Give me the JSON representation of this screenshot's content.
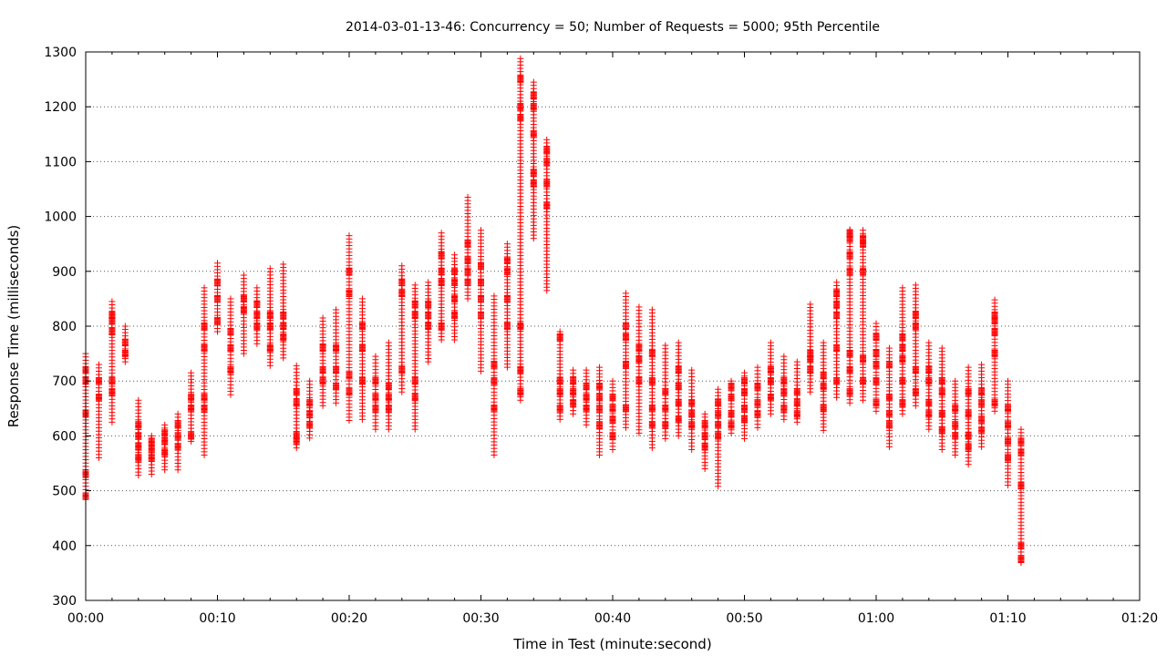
{
  "chart_data": {
    "type": "scatter",
    "title": "2014-03-01-13-46: Concurrency = 50; Number of Requests = 5000; 95th Percentile",
    "xlabel": "Time in Test (minute:second)",
    "ylabel": "Response Time (milliseconds)",
    "xlim": [
      0,
      80
    ],
    "ylim": [
      300,
      1300
    ],
    "x_unit": "seconds",
    "x_ticks": [
      {
        "value": 0,
        "label": "00:00"
      },
      {
        "value": 10,
        "label": "00:10"
      },
      {
        "value": 20,
        "label": "00:20"
      },
      {
        "value": 30,
        "label": "00:30"
      },
      {
        "value": 40,
        "label": "00:40"
      },
      {
        "value": 50,
        "label": "00:50"
      },
      {
        "value": 60,
        "label": "01:00"
      },
      {
        "value": 70,
        "label": "01:10"
      },
      {
        "value": 80,
        "label": "01:20"
      }
    ],
    "y_ticks": [
      300,
      400,
      500,
      600,
      700,
      800,
      900,
      1000,
      1100,
      1200,
      1300
    ],
    "grid": true,
    "marker": "+",
    "color": "#ff0000",
    "point_groups": [
      {
        "t": 0,
        "min": 490,
        "max": 750,
        "dense": [
          490,
          530,
          640,
          700,
          720
        ]
      },
      {
        "t": 1,
        "min": 560,
        "max": 730,
        "dense": [
          670,
          700
        ]
      },
      {
        "t": 2,
        "min": 625,
        "max": 845,
        "dense": [
          680,
          700,
          790,
          810,
          820
        ]
      },
      {
        "t": 3,
        "min": 735,
        "max": 800,
        "dense": [
          750,
          770
        ]
      },
      {
        "t": 4,
        "min": 528,
        "max": 665,
        "dense": [
          560,
          580,
          600,
          620
        ]
      },
      {
        "t": 5,
        "min": 530,
        "max": 600,
        "dense": [
          560,
          575,
          590
        ]
      },
      {
        "t": 6,
        "min": 538,
        "max": 620,
        "dense": [
          570,
          590,
          605
        ]
      },
      {
        "t": 7,
        "min": 538,
        "max": 640,
        "dense": [
          580,
          600,
          620
        ]
      },
      {
        "t": 8,
        "min": 590,
        "max": 715,
        "dense": [
          600,
          650,
          670
        ]
      },
      {
        "t": 9,
        "min": 565,
        "max": 870,
        "dense": [
          650,
          670,
          760,
          800
        ]
      },
      {
        "t": 10,
        "min": 790,
        "max": 915,
        "dense": [
          810,
          850,
          880
        ]
      },
      {
        "t": 11,
        "min": 675,
        "max": 850,
        "dense": [
          720,
          760,
          790
        ]
      },
      {
        "t": 12,
        "min": 750,
        "max": 893,
        "dense": [
          830,
          850
        ]
      },
      {
        "t": 13,
        "min": 768,
        "max": 870,
        "dense": [
          800,
          820,
          840
        ]
      },
      {
        "t": 14,
        "min": 728,
        "max": 905,
        "dense": [
          760,
          800,
          820
        ]
      },
      {
        "t": 15,
        "min": 742,
        "max": 913,
        "dense": [
          780,
          800,
          820
        ]
      },
      {
        "t": 16,
        "min": 578,
        "max": 728,
        "dense": [
          590,
          600,
          660,
          680
        ]
      },
      {
        "t": 17,
        "min": 596,
        "max": 700,
        "dense": [
          620,
          640,
          660
        ]
      },
      {
        "t": 18,
        "min": 655,
        "max": 815,
        "dense": [
          700,
          720,
          760
        ]
      },
      {
        "t": 19,
        "min": 660,
        "max": 830,
        "dense": [
          690,
          720,
          760
        ]
      },
      {
        "t": 20,
        "min": 628,
        "max": 965,
        "dense": [
          680,
          710,
          860,
          900
        ]
      },
      {
        "t": 21,
        "min": 630,
        "max": 850,
        "dense": [
          700,
          760,
          800
        ]
      },
      {
        "t": 22,
        "min": 612,
        "max": 745,
        "dense": [
          650,
          670,
          700
        ]
      },
      {
        "t": 23,
        "min": 612,
        "max": 770,
        "dense": [
          650,
          670,
          690
        ]
      },
      {
        "t": 24,
        "min": 680,
        "max": 910,
        "dense": [
          720,
          860,
          880
        ]
      },
      {
        "t": 25,
        "min": 612,
        "max": 875,
        "dense": [
          670,
          700,
          820,
          840
        ]
      },
      {
        "t": 26,
        "min": 735,
        "max": 880,
        "dense": [
          800,
          820,
          840
        ]
      },
      {
        "t": 27,
        "min": 775,
        "max": 970,
        "dense": [
          800,
          880,
          900,
          930
        ]
      },
      {
        "t": 28,
        "min": 775,
        "max": 930,
        "dense": [
          820,
          850,
          880,
          900
        ]
      },
      {
        "t": 29,
        "min": 850,
        "max": 1035,
        "dense": [
          880,
          900,
          920,
          950
        ]
      },
      {
        "t": 30,
        "min": 718,
        "max": 975,
        "dense": [
          820,
          850,
          880,
          910
        ]
      },
      {
        "t": 31,
        "min": 565,
        "max": 855,
        "dense": [
          650,
          700,
          730
        ]
      },
      {
        "t": 32,
        "min": 725,
        "max": 950,
        "dense": [
          800,
          850,
          900,
          920
        ]
      },
      {
        "t": 33,
        "min": 665,
        "max": 1288,
        "dense": [
          680,
          720,
          800,
          1180,
          1200,
          1250
        ]
      },
      {
        "t": 34,
        "min": 960,
        "max": 1245,
        "dense": [
          1060,
          1080,
          1150,
          1200,
          1220
        ]
      },
      {
        "t": 35,
        "min": 865,
        "max": 1140,
        "dense": [
          1020,
          1060,
          1100,
          1120
        ]
      },
      {
        "t": 36,
        "min": 630,
        "max": 790,
        "dense": [
          650,
          680,
          700,
          780
        ]
      },
      {
        "t": 37,
        "min": 640,
        "max": 720,
        "dense": [
          660,
          680,
          700
        ]
      },
      {
        "t": 38,
        "min": 620,
        "max": 720,
        "dense": [
          650,
          670,
          690
        ]
      },
      {
        "t": 39,
        "min": 565,
        "max": 725,
        "dense": [
          620,
          650,
          670,
          690
        ]
      },
      {
        "t": 40,
        "min": 575,
        "max": 700,
        "dense": [
          600,
          630,
          650,
          670
        ]
      },
      {
        "t": 41,
        "min": 615,
        "max": 860,
        "dense": [
          650,
          730,
          780,
          800
        ]
      },
      {
        "t": 42,
        "min": 605,
        "max": 835,
        "dense": [
          700,
          740,
          760
        ]
      },
      {
        "t": 43,
        "min": 578,
        "max": 830,
        "dense": [
          620,
          650,
          700,
          750
        ]
      },
      {
        "t": 44,
        "min": 595,
        "max": 765,
        "dense": [
          620,
          650,
          680
        ]
      },
      {
        "t": 45,
        "min": 600,
        "max": 770,
        "dense": [
          630,
          660,
          690,
          720
        ]
      },
      {
        "t": 46,
        "min": 575,
        "max": 720,
        "dense": [
          620,
          640,
          660
        ]
      },
      {
        "t": 47,
        "min": 540,
        "max": 640,
        "dense": [
          580,
          600,
          620
        ]
      },
      {
        "t": 48,
        "min": 508,
        "max": 685,
        "dense": [
          600,
          620,
          640,
          660
        ]
      },
      {
        "t": 49,
        "min": 605,
        "max": 700,
        "dense": [
          620,
          640,
          670,
          690
        ]
      },
      {
        "t": 50,
        "min": 595,
        "max": 715,
        "dense": [
          630,
          650,
          680,
          700
        ]
      },
      {
        "t": 51,
        "min": 615,
        "max": 725,
        "dense": [
          640,
          660,
          690
        ]
      },
      {
        "t": 52,
        "min": 640,
        "max": 770,
        "dense": [
          670,
          700,
          720
        ]
      },
      {
        "t": 53,
        "min": 630,
        "max": 745,
        "dense": [
          650,
          680,
          700
        ]
      },
      {
        "t": 54,
        "min": 625,
        "max": 735,
        "dense": [
          640,
          660,
          680
        ]
      },
      {
        "t": 55,
        "min": 680,
        "max": 840,
        "dense": [
          720,
          740,
          750
        ]
      },
      {
        "t": 56,
        "min": 610,
        "max": 770,
        "dense": [
          650,
          690,
          710
        ]
      },
      {
        "t": 57,
        "min": 670,
        "max": 880,
        "dense": [
          700,
          760,
          820,
          840,
          860
        ]
      },
      {
        "t": 58,
        "min": 660,
        "max": 975,
        "dense": [
          680,
          720,
          750,
          900,
          930,
          960,
          970
        ]
      },
      {
        "t": 59,
        "min": 665,
        "max": 975,
        "dense": [
          700,
          740,
          900,
          950,
          960
        ]
      },
      {
        "t": 60,
        "min": 645,
        "max": 805,
        "dense": [
          660,
          700,
          730,
          750,
          780
        ]
      },
      {
        "t": 61,
        "min": 580,
        "max": 760,
        "dense": [
          620,
          640,
          670,
          730
        ]
      },
      {
        "t": 62,
        "min": 640,
        "max": 870,
        "dense": [
          660,
          700,
          740,
          760,
          780
        ]
      },
      {
        "t": 63,
        "min": 655,
        "max": 875,
        "dense": [
          680,
          720,
          800,
          820
        ]
      },
      {
        "t": 64,
        "min": 612,
        "max": 770,
        "dense": [
          640,
          660,
          700,
          720
        ]
      },
      {
        "t": 65,
        "min": 575,
        "max": 760,
        "dense": [
          610,
          640,
          680,
          700
        ]
      },
      {
        "t": 66,
        "min": 565,
        "max": 700,
        "dense": [
          600,
          620,
          650
        ]
      },
      {
        "t": 67,
        "min": 548,
        "max": 725,
        "dense": [
          580,
          600,
          640,
          680
        ]
      },
      {
        "t": 68,
        "min": 580,
        "max": 730,
        "dense": [
          610,
          630,
          660,
          680
        ]
      },
      {
        "t": 69,
        "min": 645,
        "max": 848,
        "dense": [
          660,
          750,
          790,
          810,
          820
        ]
      },
      {
        "t": 70,
        "min": 510,
        "max": 700,
        "dense": [
          560,
          590,
          620,
          650
        ]
      },
      {
        "t": 71,
        "min": 370,
        "max": 612,
        "dense": [
          375,
          400,
          510,
          570,
          590
        ]
      }
    ]
  }
}
